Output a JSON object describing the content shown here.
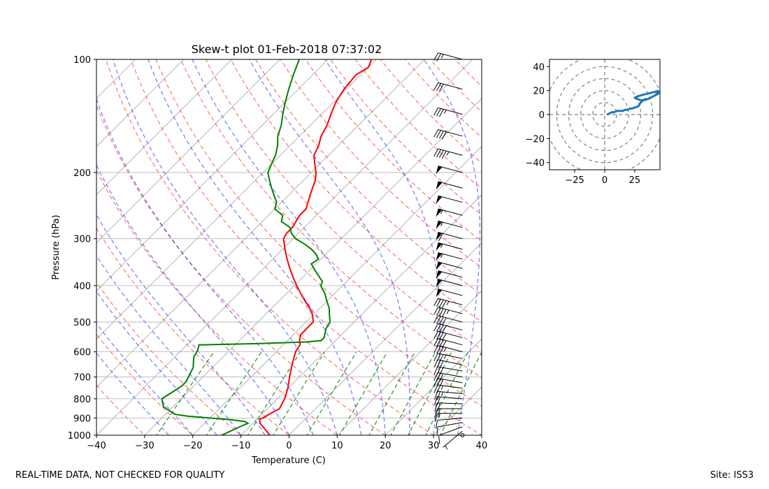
{
  "footer": {
    "left": "REAL-TIME DATA, NOT CHECKED FOR QUALITY",
    "right": "Site: ISS3"
  },
  "chart_data": [
    {
      "type": "line",
      "subtype": "skew-t",
      "title": "Skew-t plot 01-Feb-2018 07:37:02",
      "xlabel": "Temperature (C)",
      "ylabel": "Pressure (hPa)",
      "xlim": [
        -40,
        40
      ],
      "ylim": [
        1000,
        100
      ],
      "yscale": "log",
      "xticks": [
        -40,
        -30,
        -20,
        -10,
        0,
        10,
        20,
        30,
        40
      ],
      "yticks": [
        1000,
        900,
        800,
        700,
        600,
        500,
        400,
        300,
        200,
        100
      ],
      "grid": true,
      "series": [
        {
          "role": "temperature",
          "color": "#ff0000",
          "p": [
            1000,
            960,
            930,
            905,
            900,
            880,
            850,
            800,
            750,
            700,
            650,
            600,
            575,
            560,
            540,
            520,
            500,
            480,
            460,
            440,
            420,
            400,
            380,
            360,
            340,
            320,
            300,
            290,
            280,
            270,
            260,
            250,
            240,
            230,
            220,
            210,
            200,
            190,
            180,
            170,
            160,
            150,
            140,
            130,
            120,
            110,
            105,
            100
          ],
          "t": [
            -4,
            -6.5,
            -8.5,
            -9.5,
            -9,
            -8.5,
            -7.5,
            -8.5,
            -10,
            -12,
            -14,
            -16,
            -16.5,
            -17.5,
            -18.5,
            -18.5,
            -18.5,
            -20,
            -22,
            -24.5,
            -27,
            -29.5,
            -32,
            -34.5,
            -37,
            -39.5,
            -42,
            -42.5,
            -42.5,
            -43,
            -43.5,
            -43.5,
            -44.5,
            -45.5,
            -46.5,
            -47.5,
            -49,
            -51,
            -53,
            -54,
            -55.5,
            -56.5,
            -58,
            -59.5,
            -60.5,
            -61,
            -60,
            -61
          ]
        },
        {
          "role": "dewpoint",
          "color": "#008000",
          "p": [
            1000,
            950,
            930,
            920,
            910,
            900,
            890,
            880,
            860,
            840,
            820,
            800,
            780,
            760,
            740,
            720,
            700,
            680,
            660,
            640,
            620,
            600,
            585,
            575,
            570,
            565,
            560,
            550,
            540,
            530,
            520,
            500,
            480,
            460,
            440,
            420,
            400,
            390,
            380,
            370,
            360,
            350,
            340,
            330,
            320,
            310,
            300,
            290,
            280,
            270,
            260,
            250,
            240,
            230,
            220,
            210,
            200,
            190,
            180,
            170,
            160,
            150,
            140,
            130,
            120,
            110,
            100
          ],
          "td": [
            -14,
            -12,
            -11,
            -12,
            -15,
            -20,
            -25,
            -28,
            -30,
            -32,
            -33,
            -34,
            -33.5,
            -33,
            -32.5,
            -32.5,
            -33,
            -33.5,
            -34,
            -35,
            -36,
            -36.5,
            -37,
            -37.5,
            -25,
            -16,
            -13,
            -13,
            -13.5,
            -14,
            -14.5,
            -15,
            -16.5,
            -18,
            -20,
            -22,
            -24.5,
            -25,
            -26.5,
            -28,
            -29.5,
            -31,
            -30.5,
            -32,
            -34,
            -36.5,
            -39.5,
            -41.5,
            -43,
            -46,
            -47,
            -50,
            -51,
            -53,
            -55,
            -57,
            -59,
            -60,
            -61,
            -62.5,
            -64.5,
            -66,
            -68,
            -70,
            -72,
            -74,
            -76
          ]
        }
      ],
      "background_lines": {
        "dry_adiabats_color": "#ff0000",
        "moist_adiabats_color": "#0000ff",
        "mixing_ratio_color": "#008000",
        "isotherms_color": "#808080"
      },
      "wind_barbs": {
        "color": "#000000",
        "x_position_temp": 36,
        "p": [
          1000,
          975,
          950,
          925,
          900,
          875,
          850,
          825,
          800,
          775,
          750,
          725,
          700,
          675,
          650,
          625,
          600,
          575,
          550,
          525,
          500,
          475,
          450,
          425,
          400,
          380,
          360,
          340,
          320,
          300,
          280,
          260,
          240,
          220,
          200,
          180,
          160,
          140,
          120,
          100
        ],
        "speed_kt": [
          3,
          5,
          8,
          10,
          12,
          15,
          18,
          20,
          22,
          25,
          25,
          28,
          30,
          30,
          32,
          35,
          35,
          38,
          40,
          40,
          42,
          45,
          45,
          48,
          50,
          50,
          52,
          55,
          55,
          58,
          55,
          55,
          52,
          50,
          50,
          45,
          40,
          35,
          30,
          25
        ],
        "dir_deg": [
          200,
          230,
          250,
          260,
          265,
          270,
          270,
          272,
          275,
          275,
          278,
          280,
          280,
          280,
          282,
          282,
          285,
          285,
          285,
          285,
          285,
          285,
          285,
          285,
          285,
          285,
          285,
          285,
          285,
          285,
          285,
          285,
          285,
          285,
          285,
          285,
          285,
          285,
          285,
          285
        ]
      }
    },
    {
      "type": "line",
      "subtype": "hodograph",
      "xlim": [
        -46,
        46
      ],
      "ylim": [
        -46,
        46
      ],
      "xticks": [
        -25,
        0,
        25
      ],
      "yticks": [
        -40,
        -20,
        0,
        20,
        40
      ],
      "rings": [
        10,
        20,
        30,
        40,
        50
      ],
      "color": "#1f77b4",
      "u": [
        2,
        4,
        6,
        8,
        10,
        13,
        15,
        17,
        19,
        21,
        23,
        25,
        26,
        28,
        30,
        32,
        34,
        36,
        38,
        40,
        42,
        44,
        46,
        44,
        40,
        36,
        33,
        30,
        27,
        25,
        27,
        30,
        34,
        38,
        42,
        45
      ],
      "v": [
        0,
        1,
        2,
        2,
        3,
        3,
        3,
        4,
        4,
        5,
        5,
        6,
        6,
        7,
        10,
        12,
        13,
        13,
        14,
        15,
        16,
        18,
        19,
        17,
        15,
        13,
        12,
        12,
        13,
        14,
        15,
        16,
        17,
        18,
        19,
        20
      ]
    }
  ]
}
